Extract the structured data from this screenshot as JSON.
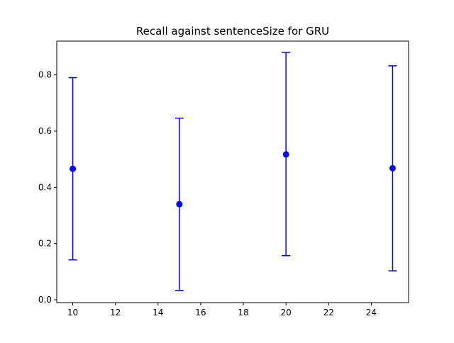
{
  "chart_data": {
    "type": "scatter",
    "title": "Recall against sentenceSize for GRU",
    "xlabel": "",
    "ylabel": "",
    "xlim": [
      9.25,
      25.75
    ],
    "ylim": [
      -0.01,
      0.92
    ],
    "x_ticks": [
      10,
      12,
      14,
      16,
      18,
      20,
      22,
      24
    ],
    "y_ticks": [
      0.0,
      0.2,
      0.4,
      0.6,
      0.8
    ],
    "x_tick_labels": [
      "10",
      "12",
      "14",
      "16",
      "18",
      "20",
      "22",
      "24"
    ],
    "y_tick_labels": [
      "0.0",
      "0.2",
      "0.4",
      "0.6",
      "0.8"
    ],
    "grid": false,
    "legend": "none",
    "color": "#0000ff",
    "series": [
      {
        "x": [
          10,
          15,
          20,
          25
        ],
        "y": [
          0.466,
          0.34,
          0.517,
          0.468
        ],
        "error_low": [
          0.142,
          0.033,
          0.157,
          0.103
        ],
        "error_high": [
          0.79,
          0.646,
          0.88,
          0.832
        ]
      }
    ]
  }
}
